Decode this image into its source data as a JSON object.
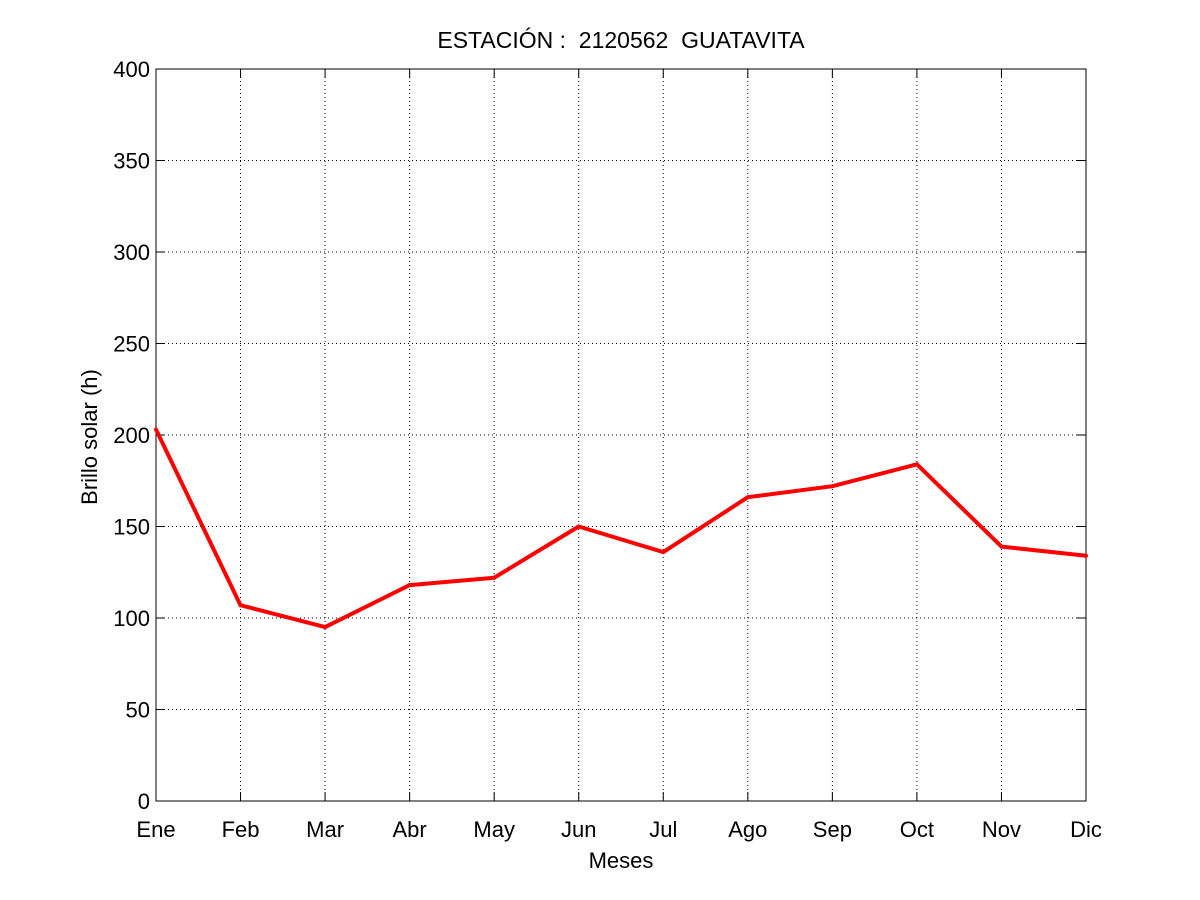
{
  "chart_data": {
    "type": "line",
    "title": "ESTACIÓN :  2120562  GUATAVITA",
    "xlabel": "Meses",
    "ylabel": "Brillo solar (h)",
    "categories": [
      "Ene",
      "Feb",
      "Mar",
      "Abr",
      "May",
      "Jun",
      "Jul",
      "Ago",
      "Sep",
      "Oct",
      "Nov",
      "Dic"
    ],
    "series": [
      {
        "values": [
          203,
          107,
          95,
          118,
          122,
          150,
          136,
          166,
          172,
          184,
          139,
          134
        ],
        "color": "#ff0000"
      }
    ],
    "ylim": [
      0,
      400
    ],
    "yticks": [
      "0",
      "50",
      "100",
      "150",
      "200",
      "250",
      "300",
      "350",
      "400"
    ],
    "grid": true
  }
}
